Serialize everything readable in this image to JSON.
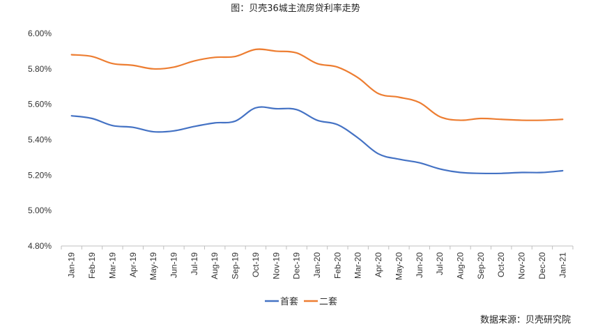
{
  "chart_data": {
    "type": "line",
    "title": "图：贝壳36城主流房贷利率走势",
    "source": "数据来源：贝壳研究院",
    "categories": [
      "Jan-19",
      "Feb-19",
      "Mar-19",
      "Apr-19",
      "May-19",
      "Jun-19",
      "Jul-19",
      "Aug-19",
      "Sep-19",
      "Oct-19",
      "Nov-19",
      "Dec-19",
      "Jan-20",
      "Feb-20",
      "Mar-20",
      "Apr-20",
      "May-20",
      "Jun-20",
      "Jul-20",
      "Aug-20",
      "Sep-20",
      "Oct-20",
      "Nov-20",
      "Dec-20",
      "Jan-21"
    ],
    "ylim": [
      4.8,
      6.0
    ],
    "yticks": [
      4.8,
      5.0,
      5.2,
      5.4,
      5.6,
      5.8,
      6.0
    ],
    "ytick_labels": [
      "4.80%",
      "5.00%",
      "5.20%",
      "5.40%",
      "5.60%",
      "5.80%",
      "6.00%"
    ],
    "xlabel": "",
    "ylabel": "",
    "grid": false,
    "legend_position": "bottom",
    "series": [
      {
        "name": "首套",
        "color": "#4472C4",
        "values": [
          5.535,
          5.52,
          5.48,
          5.47,
          5.445,
          5.45,
          5.475,
          5.495,
          5.505,
          5.58,
          5.575,
          5.57,
          5.51,
          5.485,
          5.41,
          5.32,
          5.29,
          5.27,
          5.235,
          5.215,
          5.21,
          5.21,
          5.215,
          5.215,
          5.225
        ]
      },
      {
        "name": "二套",
        "color": "#ED7D31",
        "values": [
          5.88,
          5.87,
          5.83,
          5.82,
          5.8,
          5.81,
          5.845,
          5.865,
          5.87,
          5.91,
          5.9,
          5.89,
          5.83,
          5.81,
          5.75,
          5.66,
          5.64,
          5.61,
          5.53,
          5.51,
          5.52,
          5.515,
          5.51,
          5.51,
          5.515
        ]
      }
    ]
  }
}
